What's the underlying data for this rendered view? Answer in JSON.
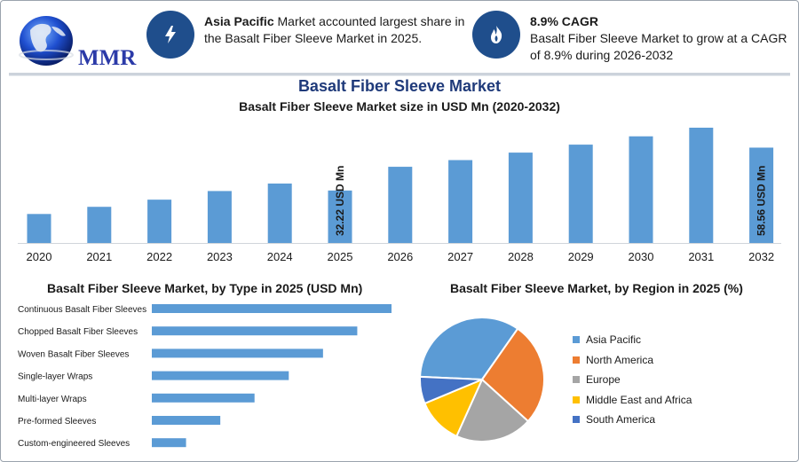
{
  "logo": {
    "text": "MMR"
  },
  "callouts": [
    {
      "icon": "lightning-icon",
      "highlight": "Asia Pacific",
      "text": " Market accounted largest share in the Basalt Fiber Sleeve Market in 2025."
    },
    {
      "icon": "flame-icon",
      "highlight": "8.9% CAGR",
      "text": "Basalt Fiber Sleeve Market to grow at a CAGR of 8.9% during 2026-2032"
    }
  ],
  "main_title": "Basalt Fiber Sleeve Market",
  "colors": {
    "bar": "#5b9bd5",
    "accent": "#1f4e8c",
    "title": "#1f3a7a"
  },
  "chart_data": [
    {
      "type": "bar",
      "title": "Basalt Fiber Sleeve Market size in USD Mn (2020-2032)",
      "categories": [
        "2020",
        "2021",
        "2022",
        "2023",
        "2024",
        "2025",
        "2026",
        "2027",
        "2028",
        "2029",
        "2030",
        "2031",
        "2032"
      ],
      "values": [
        17.8,
        22.2,
        26.6,
        31.9,
        36.5,
        32.22,
        46.8,
        50.9,
        55.5,
        60.4,
        65.5,
        70.8,
        58.56
      ],
      "annotations": [
        {
          "category": "2025",
          "label": "32.22 USD Mn"
        },
        {
          "category": "2032",
          "label": "58.56 USD Mn"
        }
      ],
      "xlabel": "",
      "ylabel": ""
    },
    {
      "type": "bar",
      "orientation": "horizontal",
      "title": "Basalt Fiber Sleeve Market, by Type in 2025 (USD Mn)",
      "categories": [
        "Continuous Basalt Fiber Sleeves",
        "Chopped Basalt Fiber Sleeves",
        "Woven Basalt Fiber Sleeves",
        "Single-layer Wraps",
        "Multi-layer Wraps",
        "Pre-formed Sleeves",
        "Custom-engineered Sleeves"
      ],
      "values": [
        7.0,
        6.0,
        5.0,
        4.0,
        3.0,
        2.0,
        1.0
      ]
    },
    {
      "type": "pie",
      "title": "Basalt Fiber Sleeve Market, by Region in 2025 (%)",
      "labels": [
        "Asia Pacific",
        "North America",
        "Europe",
        "Middle East and Africa",
        "South America"
      ],
      "values": [
        34,
        27,
        20,
        12,
        7
      ],
      "colors": [
        "#5b9bd5",
        "#ed7d31",
        "#a5a5a5",
        "#ffc000",
        "#4472c4"
      ],
      "legend": "right"
    }
  ]
}
